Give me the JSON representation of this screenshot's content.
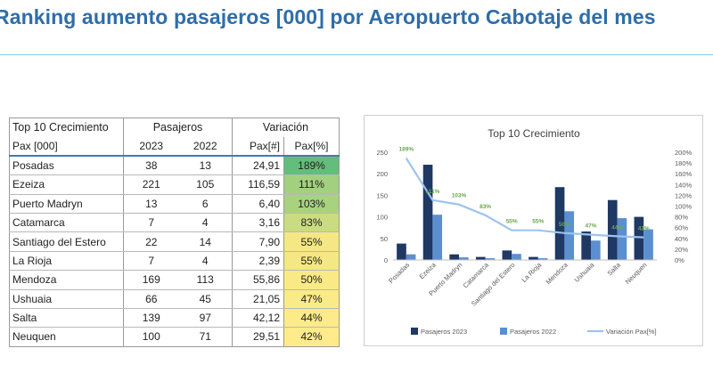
{
  "header": {
    "title": "Ranking aumento pasajeros [000] por Aeropuerto Cabotaje del mes"
  },
  "table": {
    "corner_label": "Top 10 Crecimiento",
    "group_pasajeros": "Pasajeros",
    "group_variacion": "Variación",
    "col_name": "Pax [000]",
    "col_2023": "2023",
    "col_2022": "2022",
    "col_pax_num": "Pax[#]",
    "col_pax_pct": "Pax[%]",
    "rows": [
      {
        "name": "Posadas",
        "y2023": "38",
        "y2022": "13",
        "pax_num": "24,91",
        "pax_pct": "189%",
        "color": "#63be7b"
      },
      {
        "name": "Ezeiza",
        "y2023": "221",
        "y2022": "105",
        "pax_num": "116,59",
        "pax_pct": "111%",
        "color": "#a2d07f"
      },
      {
        "name": "Puerto Madryn",
        "y2023": "13",
        "y2022": "6",
        "pax_num": "6,40",
        "pax_pct": "103%",
        "color": "#a9d27f"
      },
      {
        "name": "Catamarca",
        "y2023": "7",
        "y2022": "4",
        "pax_num": "3,16",
        "pax_pct": "83%",
        "color": "#cadc81"
      },
      {
        "name": "Santiago del Estero",
        "y2023": "22",
        "y2022": "14",
        "pax_num": "7,90",
        "pax_pct": "55%",
        "color": "#f5e884"
      },
      {
        "name": "La Rioja",
        "y2023": "7",
        "y2022": "4",
        "pax_num": "2,39",
        "pax_pct": "55%",
        "color": "#f5e884"
      },
      {
        "name": "Mendoza",
        "y2023": "169",
        "y2022": "113",
        "pax_num": "55,86",
        "pax_pct": "50%",
        "color": "#f9ea86"
      },
      {
        "name": "Ushuaia",
        "y2023": "66",
        "y2022": "45",
        "pax_num": "21,05",
        "pax_pct": "47%",
        "color": "#fbeb88"
      },
      {
        "name": "Salta",
        "y2023": "139",
        "y2022": "97",
        "pax_num": "42,12",
        "pax_pct": "44%",
        "color": "#fdeb8a"
      },
      {
        "name": "Neuquen",
        "y2023": "100",
        "y2022": "71",
        "pax_num": "29,51",
        "pax_pct": "42%",
        "color": "#ffeb8c"
      }
    ]
  },
  "chart_data": {
    "type": "bar",
    "title": "Top 10 Crecimiento",
    "categories": [
      "Posadas",
      "Ezeiza",
      "Puerto Madryn",
      "Catamarca",
      "Santiago del Estero",
      "La Rioja",
      "Mendoza",
      "Ushuaia",
      "Salta",
      "Neuquen"
    ],
    "series": [
      {
        "name": "Pasajeros 2023",
        "kind": "bar",
        "axis": "left",
        "color": "#1f3864",
        "values": [
          38,
          221,
          13,
          7,
          22,
          7,
          169,
          66,
          139,
          100
        ]
      },
      {
        "name": "Pasajeros 2022",
        "kind": "bar",
        "axis": "left",
        "color": "#5b8fd0",
        "values": [
          13,
          105,
          6,
          4,
          14,
          4,
          113,
          45,
          97,
          71
        ]
      },
      {
        "name": "Variación Pax[%]",
        "kind": "line",
        "axis": "right",
        "color": "#9dc3f0",
        "values": [
          189,
          111,
          103,
          83,
          55,
          55,
          50,
          47,
          44,
          42
        ]
      }
    ],
    "data_labels": [
      "189%",
      "111%",
      "103%",
      "83%",
      "55%",
      "55%",
      "50%",
      "47%",
      "44%",
      "42%"
    ],
    "data_label_color": "#6aa84f",
    "ylim_left": [
      0,
      250
    ],
    "yticks_left": [
      "0",
      "50",
      "100",
      "150",
      "200",
      "250"
    ],
    "ylim_right": [
      0,
      200
    ],
    "yticks_right": [
      "0%",
      "20%",
      "40%",
      "60%",
      "80%",
      "100%",
      "120%",
      "140%",
      "160%",
      "180%",
      "200%"
    ],
    "legend_position": "bottom",
    "grid": false
  }
}
